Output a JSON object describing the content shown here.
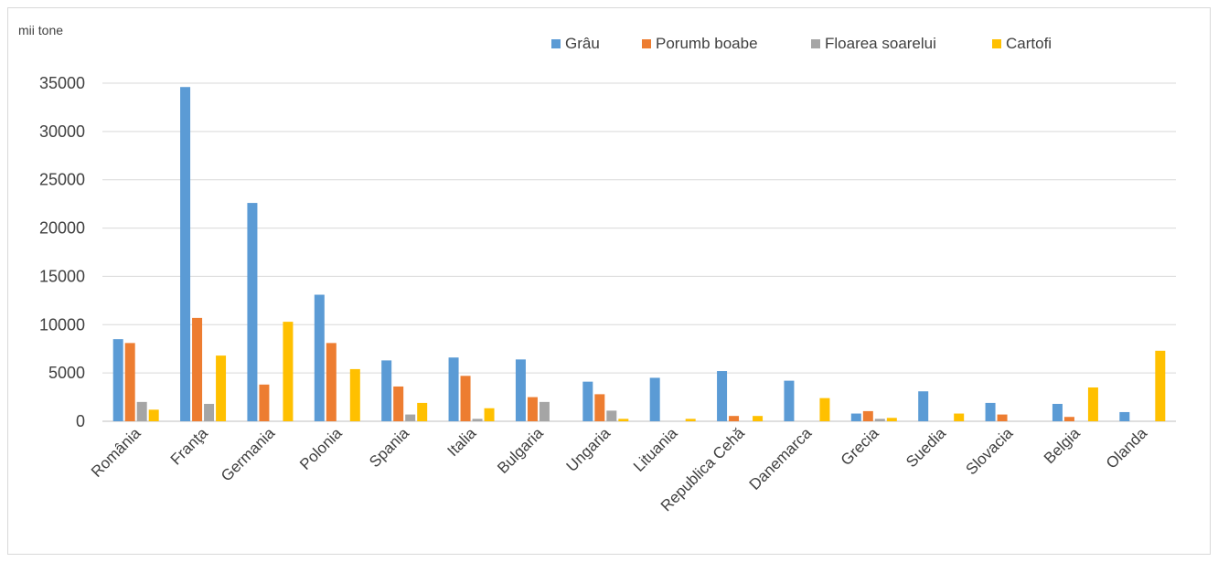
{
  "chart_data": {
    "type": "bar",
    "unit_label": "mii tone",
    "categories": [
      "România",
      "Franţa",
      "Germania",
      "Polonia",
      "Spania",
      "Italia",
      "Bulgaria",
      "Ungaria",
      "Lituania",
      "Republica Cehă",
      "Danemarca",
      "Grecia",
      "Suedia",
      "Slovacia",
      "Belgia",
      "Olanda"
    ],
    "series": [
      {
        "name": "Grâu",
        "color": "#5b9bd5",
        "values": [
          8500,
          34600,
          22600,
          13100,
          6300,
          6600,
          6400,
          4100,
          4500,
          5200,
          4200,
          800,
          3100,
          1900,
          1800,
          950
        ]
      },
      {
        "name": "Porumb boabe",
        "color": "#ed7d31",
        "values": [
          8100,
          10700,
          3800,
          8100,
          3600,
          4700,
          2500,
          2800,
          0,
          550,
          0,
          1050,
          0,
          700,
          450,
          0
        ]
      },
      {
        "name": "Floarea soarelui",
        "color": "#a5a5a5",
        "values": [
          2000,
          1800,
          0,
          0,
          700,
          250,
          2000,
          1100,
          0,
          0,
          0,
          250,
          0,
          0,
          0,
          0
        ]
      },
      {
        "name": "Cartofi",
        "color": "#ffc000",
        "values": [
          1200,
          6800,
          10300,
          5400,
          1900,
          1350,
          0,
          250,
          250,
          550,
          2400,
          350,
          800,
          0,
          3500,
          7300
        ]
      }
    ],
    "ylim": [
      0,
      35000
    ],
    "yticks": [
      0,
      5000,
      10000,
      15000,
      20000,
      25000,
      30000,
      35000
    ],
    "grid": true,
    "legend_position": "top-right"
  }
}
